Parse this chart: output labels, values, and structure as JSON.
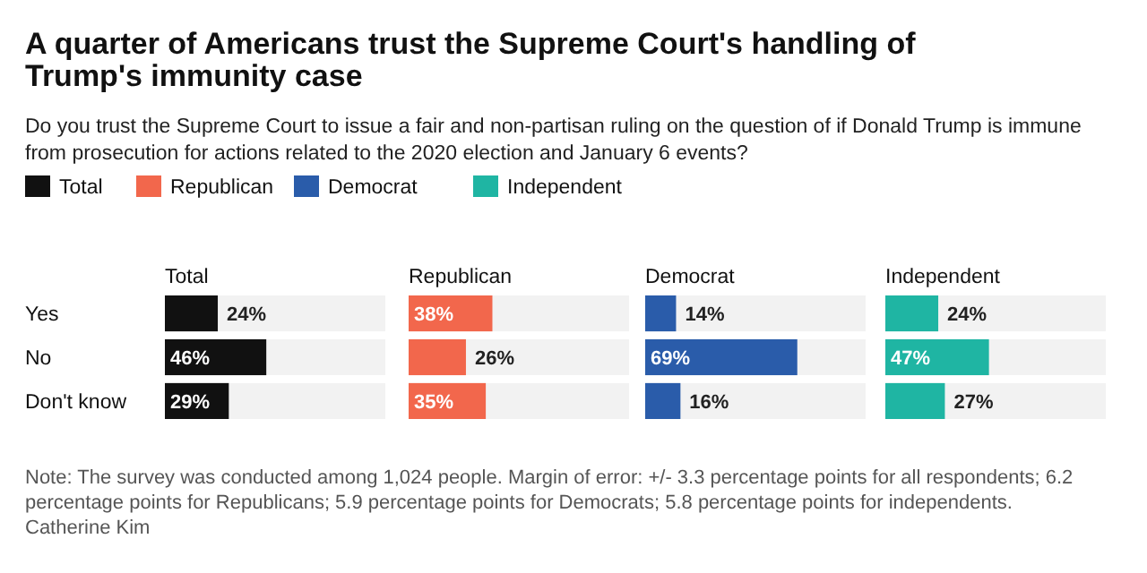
{
  "chart_data": [
    {
      "type": "other",
      "title": "A quarter of Americans trust the Supreme Court's handling of Trump's immunity case",
      "subtitle": "Do you trust the Supreme Court to issue a fair and non-partisan ruling on the question of if Donald Trump is immune from prosecution for actions related to the 2020 election and January 6 events?",
      "annotations": [
        "Note: The survey was conducted among 1,024 people. Margin of error: +/- 3.3 percentage points for all respondents; 6.2 percentage points for Republicans; 5.9 percentage points for Democrats; 5.8 percentage points for independents.",
        "Catherine Kim"
      ]
    },
    {
      "type": "bar",
      "orientation": "horizontal",
      "title": "Total",
      "categories": [
        "Yes",
        "No",
        "Don't know"
      ],
      "xlim": [
        0,
        100
      ],
      "legend": "top",
      "tick_labels": "y",
      "series": [
        {
          "name": "Total",
          "color": "#111111",
          "values": [
            24,
            46,
            29
          ],
          "value_labels": [
            "24%",
            "46%",
            "29%"
          ]
        }
      ]
    },
    {
      "type": "bar",
      "orientation": "horizontal",
      "title": "Republican",
      "categories": [
        null,
        null,
        null
      ],
      "xlim": [
        0,
        100
      ],
      "legend": "top",
      "series": [
        {
          "name": "Republican",
          "color": "#f2674c",
          "values": [
            38,
            26,
            35
          ],
          "value_labels": [
            "38%",
            "26%",
            "35%"
          ]
        }
      ]
    },
    {
      "type": "bar",
      "orientation": "horizontal",
      "title": "Democrat",
      "categories": [
        null,
        null,
        null
      ],
      "xlim": [
        0,
        100
      ],
      "legend": "top",
      "series": [
        {
          "name": "Democrat",
          "color": "#2a5caa",
          "values": [
            14,
            69,
            16
          ],
          "value_labels": [
            "14%",
            "69%",
            "16%"
          ]
        }
      ]
    },
    {
      "type": "bar",
      "orientation": "horizontal",
      "title": "Independent",
      "categories": [
        null,
        null,
        null
      ],
      "xlim": [
        0,
        100
      ],
      "legend": "top",
      "series": [
        {
          "name": "Independent",
          "color": "#1fb5a3",
          "values": [
            24,
            47,
            27
          ],
          "value_labels": [
            "24%",
            "47%",
            "27%"
          ]
        }
      ]
    }
  ]
}
